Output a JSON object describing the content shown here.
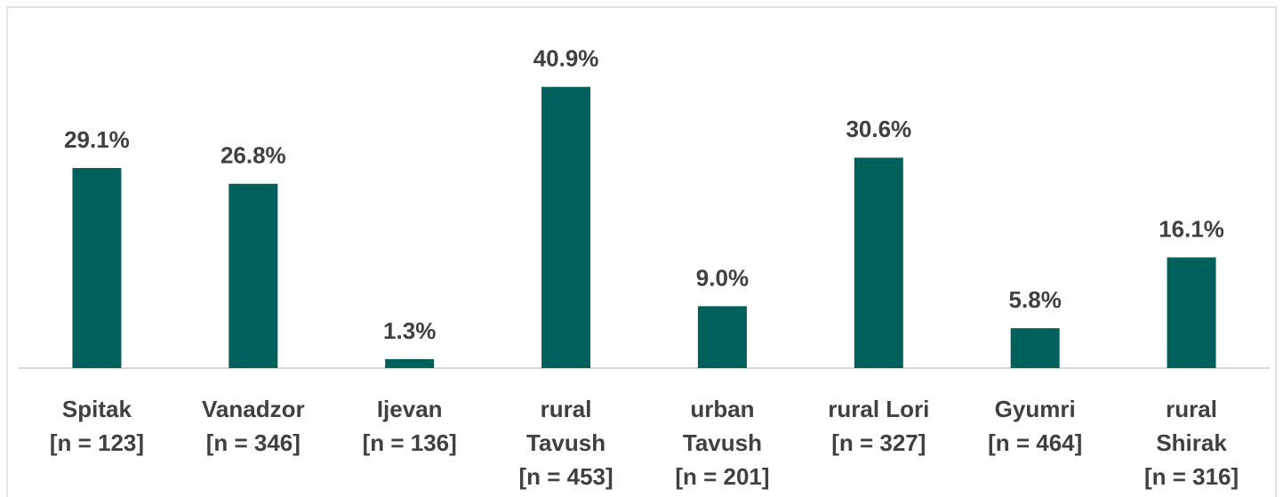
{
  "chart_data": {
    "type": "bar",
    "categories": [
      [
        "Spitak",
        "[n = 123]"
      ],
      [
        "Vanadzor",
        "[n = 346]"
      ],
      [
        "Ijevan",
        "[n = 136]"
      ],
      [
        "rural",
        "Tavush",
        "[n = 453]"
      ],
      [
        "urban",
        "Tavush",
        "[n = 201]"
      ],
      [
        "rural Lori",
        "[n = 327]"
      ],
      [
        "Gyumri",
        "[n = 464]"
      ],
      [
        "rural",
        "Shirak",
        "[n = 316]"
      ]
    ],
    "values": [
      29.1,
      26.8,
      1.3,
      40.9,
      9.0,
      30.6,
      5.8,
      16.1
    ],
    "value_labels": [
      "29.1%",
      "26.8%",
      "1.3%",
      "40.9%",
      "9.0%",
      "30.6%",
      "5.8%",
      "16.1%"
    ],
    "color": "#00605c",
    "ylim": [
      0,
      45
    ]
  }
}
